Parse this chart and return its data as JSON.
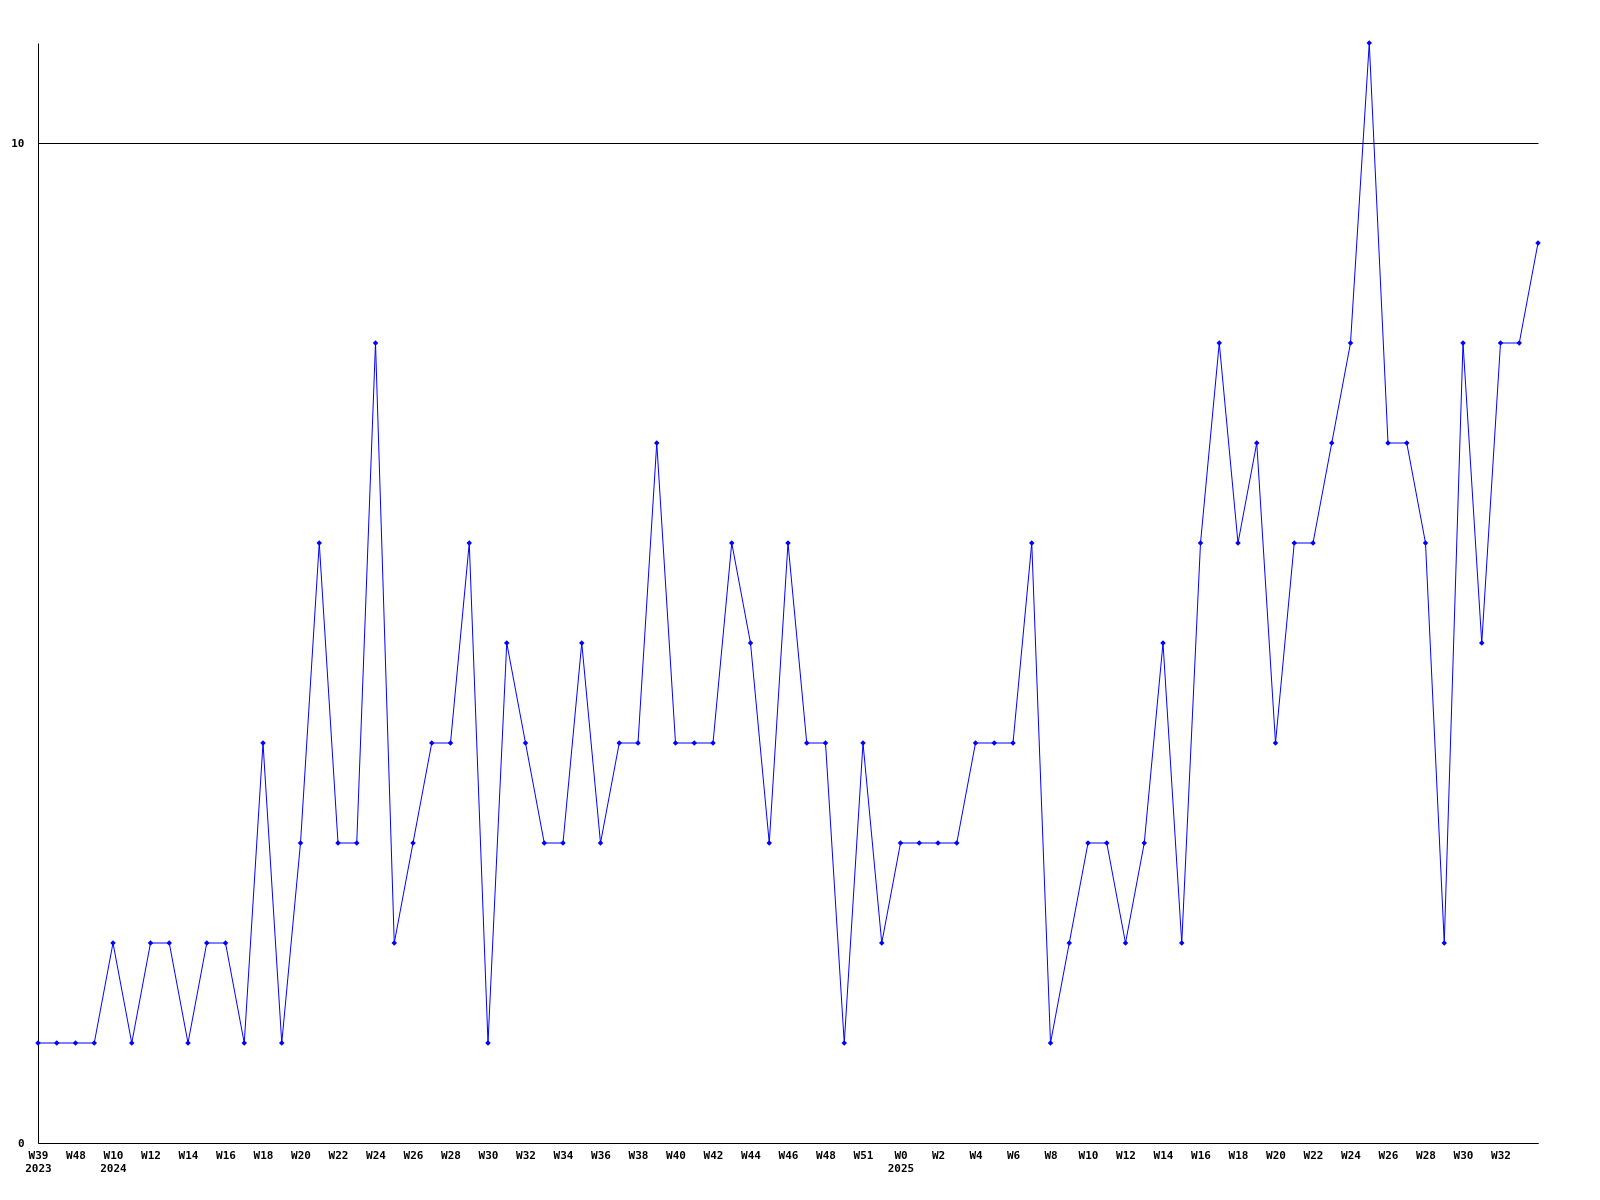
{
  "chart_data": {
    "type": "line",
    "categories": [
      "W39\n2023",
      null,
      "W48",
      null,
      "W10\n2024",
      null,
      "W12",
      null,
      "W14",
      null,
      "W16",
      null,
      "W18",
      null,
      "W20",
      null,
      "W22",
      null,
      "W24",
      null,
      "W26",
      null,
      "W28",
      null,
      "W30",
      null,
      "W32",
      null,
      "W34",
      null,
      "W36",
      null,
      "W38",
      null,
      "W40",
      null,
      "W42",
      null,
      "W44",
      null,
      "W46",
      null,
      "W48",
      null,
      "W51",
      null,
      "W0\n2025",
      null,
      "W2",
      null,
      "W4",
      null,
      "W6",
      null,
      "W8",
      null,
      "W10",
      null,
      "W12",
      null,
      "W14",
      null,
      "W16",
      null,
      "W18",
      null,
      "W20",
      null,
      "W22",
      null,
      "W24",
      null,
      "W26",
      null,
      "W28",
      null,
      "W30",
      null,
      "W32",
      null,
      null
    ],
    "series": [
      {
        "color": "#0000ff",
        "values": [
          1,
          1,
          1,
          1,
          2,
          1,
          2,
          2,
          1,
          2,
          2,
          1,
          4,
          1,
          3,
          6,
          3,
          3,
          8,
          2,
          3,
          4,
          4,
          6,
          1,
          5,
          4,
          3,
          3,
          5,
          3,
          4,
          4,
          7,
          4,
          4,
          4,
          6,
          5,
          3,
          6,
          4,
          4,
          1,
          4,
          2,
          3,
          3,
          3,
          3,
          4,
          4,
          4,
          6,
          1,
          2,
          3,
          3,
          2,
          3,
          5,
          2,
          6,
          8,
          6,
          7,
          4,
          6,
          6,
          7,
          8,
          11,
          7,
          7,
          6,
          2,
          8,
          5,
          8,
          8,
          9
        ]
      }
    ],
    "ylim": [
      0,
      11
    ],
    "yticks": [
      0,
      10
    ],
    "grid": "y",
    "marker": "diamond",
    "line_style": "solid",
    "legend": false
  }
}
